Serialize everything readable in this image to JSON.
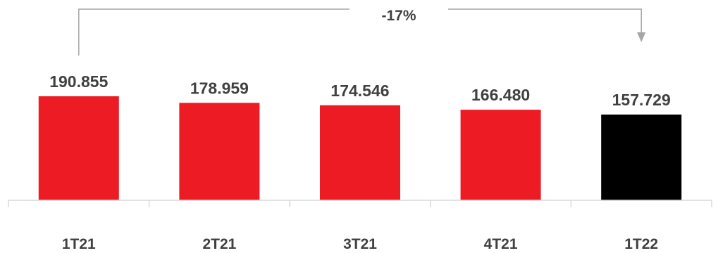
{
  "chart_data": {
    "type": "bar",
    "title": "",
    "xlabel": "",
    "ylabel": "",
    "categories": [
      "1T21",
      "2T21",
      "3T21",
      "4T21",
      "1T22"
    ],
    "values": [
      190.855,
      178.959,
      174.546,
      166.48,
      157.729
    ],
    "value_labels": [
      "190.855",
      "178.959",
      "174.546",
      "166.480",
      "157.729"
    ],
    "bar_colors": [
      "#ed1c24",
      "#ed1c24",
      "#ed1c24",
      "#ed1c24",
      "#000000"
    ],
    "ylim": [
      0,
      190.855
    ],
    "grid": false,
    "legend": "none",
    "annotation": {
      "text": "-17%",
      "from_category": "1T21",
      "to_category": "1T22",
      "color": "#a6a6a6"
    }
  }
}
